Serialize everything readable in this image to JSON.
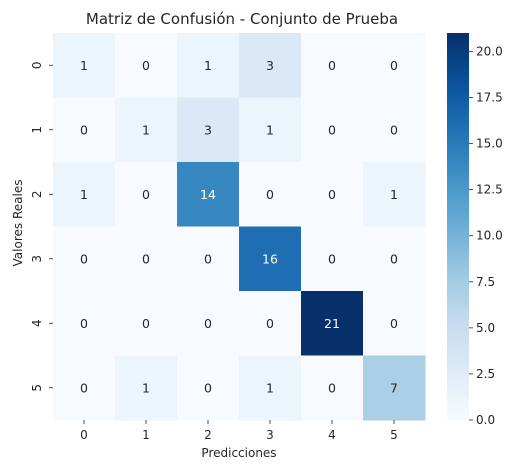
{
  "chart_data": {
    "type": "heatmap",
    "title": "Matriz de Confusión - Conjunto de Prueba",
    "xlabel": "Predicciones",
    "ylabel": "Valores Reales",
    "x_categories": [
      "0",
      "1",
      "2",
      "3",
      "4",
      "5"
    ],
    "y_categories": [
      "0",
      "1",
      "2",
      "3",
      "4",
      "5"
    ],
    "values": [
      [
        1,
        0,
        1,
        3,
        0,
        0
      ],
      [
        0,
        1,
        3,
        1,
        0,
        0
      ],
      [
        1,
        0,
        14,
        0,
        0,
        1
      ],
      [
        0,
        0,
        0,
        16,
        0,
        0
      ],
      [
        0,
        0,
        0,
        0,
        21,
        0
      ],
      [
        0,
        1,
        0,
        1,
        0,
        7
      ]
    ],
    "colormap": "Blues",
    "vmin": 0,
    "vmax": 21,
    "colorbar_ticks": [
      "0.0",
      "2.5",
      "5.0",
      "7.5",
      "10.0",
      "12.5",
      "15.0",
      "17.5",
      "20.0"
    ],
    "colorbar_tick_values": [
      0,
      2.5,
      5,
      7.5,
      10,
      12.5,
      15,
      17.5,
      20
    ],
    "colors": {
      "text_dark": "#262626",
      "text_light": "#ffffff"
    }
  }
}
